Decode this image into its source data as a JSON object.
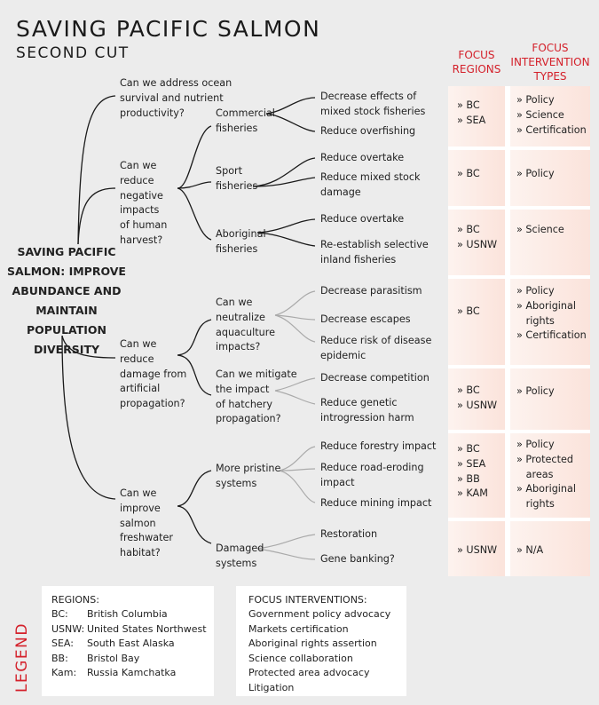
{
  "title": "SAVING PACIFIC SALMON",
  "subtitle": "SECOND CUT",
  "columns": {
    "regions_header": [
      "FOCUS",
      "REGIONS"
    ],
    "interventions_header": [
      "FOCUS",
      "INTERVENTION",
      "TYPES"
    ]
  },
  "root": [
    "SAVING PACIFIC",
    "SALMON: IMPROVE",
    "ABUNDANCE AND",
    "MAINTAIN POPULATION",
    "DIVERSITY"
  ],
  "questions": {
    "ocean": [
      "Can we address ocean",
      "survival and nutrient",
      "productivity?"
    ],
    "harvest": [
      "Can we",
      "reduce",
      "negative",
      "impacts",
      "of human",
      "harvest?"
    ],
    "propagation": [
      "Can we",
      "reduce",
      "damage from",
      "artificial",
      "propagation?"
    ],
    "habitat": [
      "Can we",
      "improve",
      "salmon",
      "freshwater",
      "habitat?"
    ]
  },
  "subnodes": {
    "commercial": [
      "Commercial",
      "fisheries"
    ],
    "sport": [
      "Sport",
      "fisheries"
    ],
    "aboriginal": [
      "Aboriginal",
      "fisheries"
    ],
    "aquaculture": [
      "Can we",
      "neutralize",
      "aquaculture",
      "impacts?"
    ],
    "hatchery": [
      "Can we mitigate",
      "the impact",
      "of hatchery",
      "propagation?"
    ],
    "pristine": [
      "More pristine",
      "systems"
    ],
    "damaged": [
      "Damaged",
      "systems"
    ]
  },
  "actions": {
    "mixed_stock": [
      "Decrease effects of",
      "mixed stock fisheries"
    ],
    "overfishing": [
      "Reduce overfishing"
    ],
    "sport_overtake": [
      "Reduce overtake"
    ],
    "sport_mixed": [
      "Reduce mixed stock",
      "damage"
    ],
    "abor_overtake": [
      "Reduce overtake"
    ],
    "abor_selective": [
      "Re-establish selective",
      "inland fisheries"
    ],
    "parasitism": [
      "Decrease parasitism"
    ],
    "escapes": [
      "Decrease escapes"
    ],
    "disease": [
      "Reduce risk of disease",
      "epidemic"
    ],
    "competition": [
      "Decrease competition"
    ],
    "genetic": [
      "Reduce genetic",
      "introgression harm"
    ],
    "forestry": [
      "Reduce forestry impact"
    ],
    "road": [
      "Reduce road-eroding",
      "impact"
    ],
    "mining": [
      "Reduce mining impact"
    ],
    "restoration": [
      "Restoration"
    ],
    "gene_banking": [
      "Gene banking?"
    ]
  },
  "rows": [
    {
      "regions": [
        "» BC",
        "» SEA"
      ],
      "interventions": [
        "» Policy",
        "» Science",
        "» Certification"
      ]
    },
    {
      "regions": [
        "» BC"
      ],
      "interventions": [
        "» Policy"
      ]
    },
    {
      "regions": [
        "» BC",
        "» USNW"
      ],
      "interventions": [
        "» Science"
      ]
    },
    {
      "regions": [
        "» BC"
      ],
      "interventions": [
        "» Policy",
        "» Aboriginal",
        "   rights",
        "» Certification"
      ]
    },
    {
      "regions": [
        "» BC",
        "» USNW"
      ],
      "interventions": [
        "» Policy"
      ]
    },
    {
      "regions": [
        "» BC",
        "» SEA",
        "» BB",
        "» KAM"
      ],
      "interventions": [
        "» Policy",
        "» Protected",
        "   areas",
        "» Aboriginal",
        "   rights"
      ]
    },
    {
      "regions": [
        "» USNW"
      ],
      "interventions": [
        "» N/A"
      ]
    }
  ],
  "legend": {
    "label": "LEGEND",
    "regions_title": "REGIONS:",
    "regions": [
      {
        "code": "BC:",
        "name": "British Columbia"
      },
      {
        "code": "USNW:",
        "name": "United States Northwest"
      },
      {
        "code": "SEA:",
        "name": "South East Alaska"
      },
      {
        "code": "BB:",
        "name": "Bristol Bay"
      },
      {
        "code": "Kam:",
        "name": "Russia Kamchatka"
      }
    ],
    "interventions_title": "FOCUS INTERVENTIONS:",
    "interventions": [
      "Government policy advocacy",
      "Markets certification",
      "Aboriginal rights assertion",
      "Science collaboration",
      "Protected area advocacy",
      "Litigation"
    ]
  },
  "colors": {
    "accent": "#d4202a",
    "dark_line": "#1a1a1a",
    "light_line": "#aaaaaa"
  }
}
